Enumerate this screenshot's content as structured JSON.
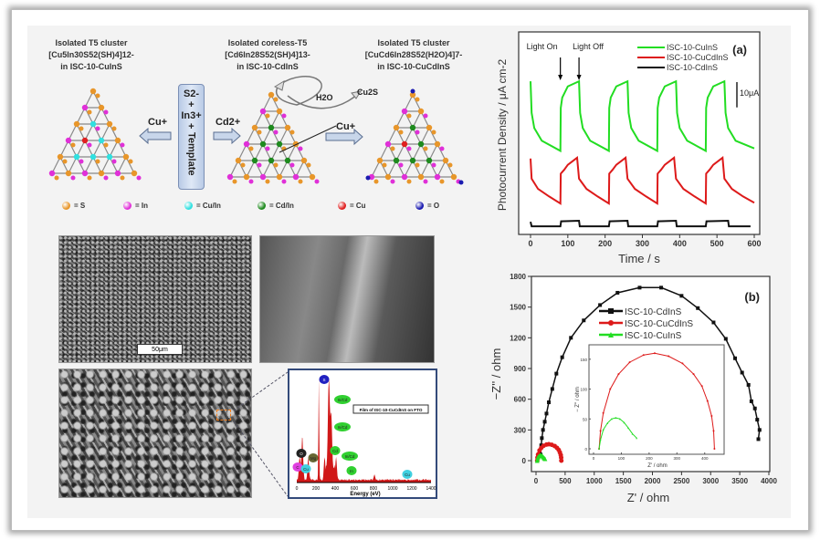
{
  "scheme": {
    "left": {
      "title": "Isolated T5 cluster",
      "formula": "[Cu5In30S52(SH)4]12-",
      "name": "in ISC-10-CuInS"
    },
    "middle": {
      "title": "Isolated coreless-T5",
      "formula": "[Cd6In28S52(SH)4]13-",
      "name": "in ISC-10-CdInS"
    },
    "right": {
      "title": "Isolated T5 cluster",
      "formula": "[CuCd6In28S52(H2O)4]7-",
      "name": "in ISC-10-CuCdInS"
    },
    "reagent": {
      "s": "S2-",
      "plus1": "+",
      "in": "In3+",
      "plus2": "+",
      "template": "Template"
    },
    "arrow_left_label": "Cu+",
    "arrow_mid_label": "Cd2+",
    "cu_insert_label": "Cu+",
    "water_label": "H2O",
    "cu2s_label": "Cu2S",
    "legend": [
      {
        "label": "= S",
        "color": "#e8962a"
      },
      {
        "label": "= In",
        "color": "#e030d8"
      },
      {
        "label": "= Cu/In",
        "color": "#30e0e0"
      },
      {
        "label": "= Cd/In",
        "color": "#1e8a1e"
      },
      {
        "label": "= Cu",
        "color": "#e02020"
      },
      {
        "label": "= O",
        "color": "#1a1ab0"
      }
    ]
  },
  "sem": {
    "scale_bar": "50μm",
    "edx_title": "Film of ISC-10-CuCdInS on FTO",
    "edx_xlabel": "Energy (eV)",
    "edx_ticks": [
      "0",
      "200",
      "400",
      "600",
      "800",
      "1000",
      "1200",
      "1400"
    ],
    "edx_peaks": [
      {
        "label": "C",
        "energy": 30,
        "color": "#e040e0"
      },
      {
        "label": "Cu",
        "energy": 60,
        "color": "#40d0e0"
      },
      {
        "label": "O",
        "energy": 55,
        "color": "#222222"
      },
      {
        "label": "Mg",
        "energy": 120,
        "color": "#666633"
      },
      {
        "label": "S",
        "energy": 230,
        "color": "#2020c0"
      },
      {
        "label": "Cd",
        "energy": 290,
        "color": "#30d030"
      },
      {
        "label": "In/Cd",
        "energy": 330,
        "color": "#30d030"
      },
      {
        "label": "In/Cd",
        "energy": 340,
        "color": "#30d030"
      },
      {
        "label": "In/Cd",
        "energy": 360,
        "color": "#30d030"
      },
      {
        "label": "In",
        "energy": 410,
        "color": "#30d030"
      },
      {
        "label": "Cu",
        "energy": 810,
        "color": "#40d0e0"
      }
    ]
  },
  "chart_data": [
    {
      "type": "line",
      "panel_label": "(a)",
      "xlabel": "Time / s",
      "ylabel": "Photocurrent Density / μA cm-2",
      "xlim": [
        0,
        600
      ],
      "xticks": [
        "0",
        "100",
        "200",
        "300",
        "400",
        "500",
        "600"
      ],
      "ylim": [
        0,
        80
      ],
      "annotations": [
        {
          "text": "Light On",
          "x": 80
        },
        {
          "text": "Light Off",
          "x": 130
        }
      ],
      "scale_bar": {
        "text": "10μA",
        "value": 10
      },
      "series": [
        {
          "name": "ISC-10-CuInS",
          "color": "#22dd22",
          "points": [
            [
              0,
              60.5
            ],
            [
              3,
              48
            ],
            [
              10,
              42
            ],
            [
              30,
              37
            ],
            [
              80,
              33
            ],
            [
              81,
              50
            ],
            [
              85,
              54
            ],
            [
              100,
              58.5
            ],
            [
              130,
              60.5
            ],
            [
              133,
              48
            ],
            [
              140,
              42
            ],
            [
              160,
              37
            ],
            [
              210,
              33
            ],
            [
              211,
              50
            ],
            [
              215,
              54
            ],
            [
              230,
              58.5
            ],
            [
              260,
              60.5
            ],
            [
              263,
              48
            ],
            [
              270,
              42
            ],
            [
              290,
              37
            ],
            [
              340,
              33
            ],
            [
              341,
              50
            ],
            [
              345,
              54
            ],
            [
              360,
              58.5
            ],
            [
              390,
              60.5
            ],
            [
              393,
              48
            ],
            [
              400,
              42
            ],
            [
              420,
              37
            ],
            [
              470,
              33
            ],
            [
              471,
              50
            ],
            [
              475,
              54
            ],
            [
              490,
              58.5
            ],
            [
              520,
              60.5
            ],
            [
              523,
              48
            ],
            [
              530,
              42
            ],
            [
              550,
              37
            ],
            [
              600,
              34
            ]
          ]
        },
        {
          "name": "ISC-10-CuCdInS",
          "color": "#dd1a1a",
          "points": [
            [
              0,
              30
            ],
            [
              3,
              22
            ],
            [
              20,
              18
            ],
            [
              50,
              15
            ],
            [
              80,
              12.2
            ],
            [
              81,
              24
            ],
            [
              90,
              25.5
            ],
            [
              100,
              27.5
            ],
            [
              125,
              30.3
            ],
            [
              130,
              22
            ],
            [
              150,
              18
            ],
            [
              180,
              15
            ],
            [
              210,
              12.2
            ],
            [
              211,
              24
            ],
            [
              220,
              25.5
            ],
            [
              230,
              27.5
            ],
            [
              255,
              30.3
            ],
            [
              260,
              22
            ],
            [
              280,
              18
            ],
            [
              310,
              15
            ],
            [
              340,
              12.2
            ],
            [
              341,
              24
            ],
            [
              350,
              25.5
            ],
            [
              360,
              27.5
            ],
            [
              385,
              30.3
            ],
            [
              390,
              22
            ],
            [
              410,
              18
            ],
            [
              440,
              15
            ],
            [
              470,
              12.2
            ],
            [
              471,
              24
            ],
            [
              480,
              25.5
            ],
            [
              490,
              27.5
            ],
            [
              515,
              30.3
            ],
            [
              520,
              22
            ],
            [
              540,
              18
            ],
            [
              570,
              15
            ],
            [
              600,
              12.5
            ]
          ]
        },
        {
          "name": "ISC-10-CdInS",
          "color": "#111111",
          "points": [
            [
              0,
              5
            ],
            [
              3,
              3.2
            ],
            [
              80,
              3.2
            ],
            [
              82,
              5.2
            ],
            [
              130,
              5.4
            ],
            [
              132,
              3.2
            ],
            [
              210,
              3.2
            ],
            [
              212,
              5.2
            ],
            [
              260,
              5.4
            ],
            [
              262,
              3.2
            ],
            [
              340,
              3.2
            ],
            [
              342,
              5.2
            ],
            [
              390,
              5.4
            ],
            [
              392,
              3.2
            ],
            [
              470,
              3.2
            ],
            [
              472,
              5.2
            ],
            [
              530,
              5.4
            ],
            [
              532,
              3.2
            ],
            [
              590,
              3.2
            ]
          ]
        }
      ]
    },
    {
      "type": "scatter",
      "panel_label": "(b)",
      "xlabel": "Z' / ohm",
      "ylabel": "−Z'' / ohm",
      "xlim": [
        -100,
        4000
      ],
      "ylim": [
        -100,
        1800
      ],
      "xticks": [
        "0",
        "500",
        "1000",
        "1500",
        "2000",
        "2500",
        "3000",
        "3500",
        "4000"
      ],
      "yticks": [
        "0",
        "300",
        "600",
        "900",
        "1200",
        "1500",
        "1800"
      ],
      "series": [
        {
          "name": "ISC-10-CdInS",
          "color": "#111111",
          "marker": "square",
          "points": [
            [
              80,
              60
            ],
            [
              90,
              150
            ],
            [
              100,
              220
            ],
            [
              120,
              300
            ],
            [
              150,
              380
            ],
            [
              180,
              460
            ],
            [
              220,
              570
            ],
            [
              280,
              700
            ],
            [
              350,
              850
            ],
            [
              450,
              1010
            ],
            [
              600,
              1200
            ],
            [
              820,
              1370
            ],
            [
              1100,
              1520
            ],
            [
              1400,
              1640
            ],
            [
              1780,
              1690
            ],
            [
              2150,
              1690
            ],
            [
              2500,
              1610
            ],
            [
              2780,
              1490
            ],
            [
              3050,
              1350
            ],
            [
              3260,
              1190
            ],
            [
              3420,
              1000
            ],
            [
              3540,
              860
            ],
            [
              3650,
              740
            ],
            [
              3700,
              580
            ],
            [
              3760,
              510
            ],
            [
              3800,
              400
            ],
            [
              3840,
              300
            ],
            [
              3820,
              210
            ]
          ]
        },
        {
          "name": "ISC-10-CuCdInS",
          "color": "#dd1a1a",
          "marker": "circle",
          "points": [
            [
              20,
              0
            ],
            [
              25,
              30
            ],
            [
              35,
              60
            ],
            [
              60,
              100
            ],
            [
              90,
              125
            ],
            [
              130,
              145
            ],
            [
              180,
              157
            ],
            [
              220,
              160
            ],
            [
              270,
              155
            ],
            [
              320,
              143
            ],
            [
              360,
              125
            ],
            [
              390,
              105
            ],
            [
              410,
              80
            ],
            [
              425,
              55
            ],
            [
              432,
              30
            ],
            [
              435,
              0
            ]
          ]
        },
        {
          "name": "ISC-10-CuInS",
          "color": "#22dd22",
          "marker": "triangle",
          "points": [
            [
              20,
              0
            ],
            [
              25,
              15
            ],
            [
              35,
              32
            ],
            [
              50,
              43
            ],
            [
              65,
              50
            ],
            [
              80,
              52
            ],
            [
              95,
              50
            ],
            [
              110,
              44
            ],
            [
              125,
              35
            ],
            [
              140,
              25
            ],
            [
              155,
              18
            ]
          ]
        }
      ],
      "inset": {
        "xlabel": "Z' / ohm",
        "ylabel": "− Z'' / ohm",
        "xlim": [
          0,
          460
        ],
        "ylim": [
          -8,
          170
        ],
        "xticks": [
          "0",
          "100",
          "200",
          "300",
          "400"
        ],
        "yticks": [
          "0",
          "50",
          "100",
          "150"
        ]
      }
    }
  ]
}
